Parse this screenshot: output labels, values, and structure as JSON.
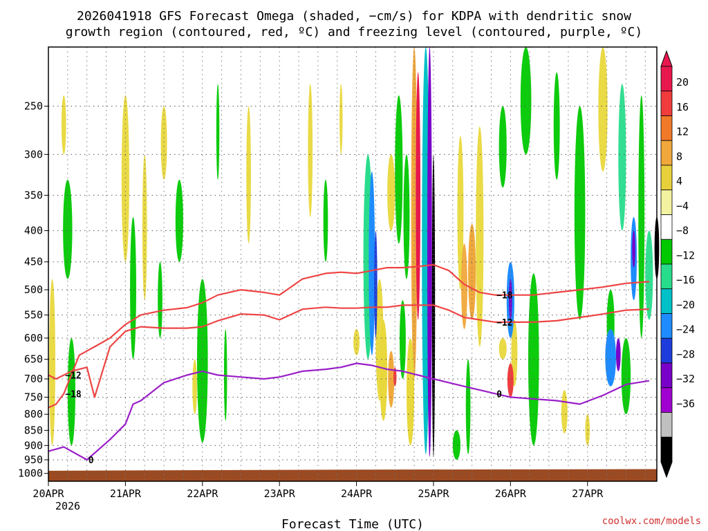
{
  "chart_data": {
    "type": "heatmap",
    "title_line1": "2026041918 GFS Forecast Omega (shaded, −cm/s) for KDPA with dendritic snow",
    "title_line2": "growth region (contoured, red, ºC) and freezing level (contoured, purple, ºC)",
    "xlabel": "Forecast Time (UTC)",
    "ylabel": "",
    "y_axis": "pressure (hPa), inverted",
    "x_range_days": [
      0,
      7.9
    ],
    "y_range_hpa": [
      200,
      1030
    ],
    "x_ticks": [
      "20APR",
      "21APR",
      "22APR",
      "23APR",
      "24APR",
      "25APR",
      "26APR",
      "27APR"
    ],
    "x_tick_positions_days": [
      0,
      1,
      2,
      3,
      4,
      5,
      6,
      7
    ],
    "x_sub_label": "2026",
    "y_ticks": [
      250,
      300,
      350,
      400,
      450,
      500,
      550,
      600,
      650,
      700,
      750,
      800,
      850,
      900,
      950,
      1000
    ],
    "colorbar": {
      "labels": [
        "20",
        "16",
        "12",
        "8",
        "4",
        "−4",
        "−8",
        "−12",
        "−16",
        "−20",
        "−24",
        "−28",
        "−32",
        "−36"
      ],
      "colors": [
        "#e8184e",
        "#f03c3c",
        "#f07a2a",
        "#f0a83c",
        "#e8d03c",
        "#f2f2a0",
        "#ffffff",
        "#00c800",
        "#28dc8c",
        "#00c0c8",
        "#1e8cff",
        "#1e3cdc",
        "#7800c8",
        "#a000d0",
        "#c0c0c0",
        "#000000"
      ]
    },
    "contours": [
      {
        "name": "-18 ºC",
        "color": "#ee4444",
        "label": "−18",
        "x": [
          0.0,
          0.1,
          0.2,
          0.4,
          0.6,
          0.8,
          1.0,
          1.2,
          1.5,
          1.8,
          2.0,
          2.2,
          2.5,
          2.8,
          3.0,
          3.3,
          3.6,
          3.8,
          4.0,
          4.2,
          4.4,
          4.6,
          4.8,
          5.0,
          5.2,
          5.4,
          5.6,
          5.8,
          6.0,
          6.3,
          6.6,
          6.9,
          7.2,
          7.5,
          7.8
        ],
        "y": [
          780,
          770,
          740,
          640,
          620,
          600,
          570,
          550,
          540,
          535,
          525,
          510,
          500,
          505,
          510,
          480,
          470,
          468,
          470,
          465,
          460,
          460,
          458,
          455,
          465,
          490,
          505,
          510,
          510,
          510,
          505,
          500,
          495,
          488,
          485
        ]
      },
      {
        "name": "-12 ºC",
        "color": "#ee4444",
        "label": "−12",
        "x": [
          0.0,
          0.1,
          0.2,
          0.3,
          0.5,
          0.6,
          0.8,
          1.0,
          1.2,
          1.5,
          1.8,
          2.0,
          2.2,
          2.5,
          2.8,
          3.0,
          3.3,
          3.6,
          3.8,
          4.0,
          4.2,
          4.4,
          4.6,
          4.8,
          5.0,
          5.2,
          5.4,
          5.6,
          5.8,
          6.0,
          6.3,
          6.6,
          6.9,
          7.2,
          7.5,
          7.8
        ],
        "y": [
          690,
          700,
          690,
          680,
          670,
          750,
          620,
          585,
          575,
          578,
          578,
          575,
          562,
          548,
          550,
          560,
          538,
          534,
          536,
          536,
          534,
          534,
          530,
          530,
          530,
          540,
          555,
          560,
          565,
          565,
          565,
          562,
          555,
          548,
          540,
          538
        ]
      },
      {
        "name": "0 ºC",
        "color": "#9a1ec8",
        "label": "0",
        "x": [
          0.0,
          0.2,
          0.5,
          0.8,
          1.0,
          1.1,
          1.2,
          1.5,
          1.8,
          2.0,
          2.2,
          2.5,
          2.8,
          3.0,
          3.3,
          3.6,
          3.8,
          4.0,
          4.2,
          4.4,
          4.6,
          4.8,
          5.0,
          5.2,
          5.4,
          5.6,
          5.8,
          6.0,
          6.3,
          6.6,
          6.9,
          7.2,
          7.5,
          7.8
        ],
        "y": [
          920,
          905,
          950,
          880,
          830,
          770,
          760,
          710,
          690,
          680,
          690,
          695,
          700,
          695,
          680,
          675,
          670,
          660,
          665,
          675,
          680,
          690,
          700,
          710,
          720,
          730,
          740,
          750,
          755,
          760,
          770,
          745,
          715,
          705
        ]
      }
    ],
    "omega_cells": [
      {
        "band": "-32 to -36",
        "x": 5.05,
        "p": [
          350,
          960
        ],
        "sign": "neg"
      },
      {
        "band": "-20 to -24",
        "x": 4.2,
        "p": [
          300,
          700
        ],
        "sign": "neg"
      },
      {
        "band": "16 to 20",
        "x": 5.0,
        "p": [
          230,
          700
        ],
        "sign": "pos"
      },
      {
        "band": "12 to 16",
        "x": 6.0,
        "p": [
          630,
          720
        ],
        "sign": "pos"
      },
      {
        "band": "-24 to -28",
        "x": 7.6,
        "p": [
          370,
          470
        ],
        "sign": "neg"
      }
    ],
    "ground_color": "#9c4a22",
    "credit": "coolwx.com/models"
  }
}
